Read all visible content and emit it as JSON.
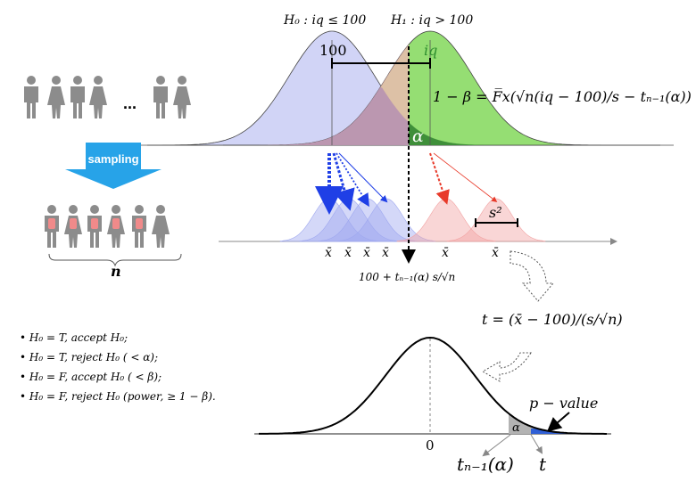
{
  "top_panel": {
    "h0_label": "H₀ : iq ≤ 100",
    "h1_label": "H₁ : iq > 100",
    "mean_h0_label": "100",
    "mean_h1_label": "iq",
    "alpha_label": "α",
    "power_formula": "1 − β = F̅x(√n(iq − 100)/s − tₙ₋₁(α))",
    "colors": {
      "h0": "#c9cdf5",
      "h1": "#8fdc6c",
      "overlap": "#b58fb2",
      "alpha_region": "#3f8f3a"
    }
  },
  "population": {
    "ellipsis": "...",
    "sampling_label": "sampling",
    "n_label": "n",
    "colors": {
      "person": "#8c8c8c",
      "selected": "#f08a8a",
      "arrow": "#27a3e8"
    }
  },
  "sampling_dist": {
    "xbar_label": "x̄",
    "s2_label": "s²",
    "threshold_label": "100 + tₙ₋₁(α) s/√n"
  },
  "t_stat": {
    "formula": "t = (x̄ − 100)/(s/√n)"
  },
  "decisions": [
    "H₀ = T,  accept H₀;",
    "H₀ = T,  reject  H₀ ( < α);",
    "H₀ = F,  accept H₀ ( < β);",
    "H₀ = F,  reject  H₀ (power,  ≥ 1 − β)."
  ],
  "bottom_panel": {
    "zero_label": "0",
    "alpha_label": "α",
    "pvalue_label": "p − value",
    "t_crit_label": "tₙ₋₁(α)",
    "t_label": "t",
    "colors": {
      "alpha_fill": "#b3b3b3",
      "pvalue_fill": "#2f5fd6"
    }
  }
}
